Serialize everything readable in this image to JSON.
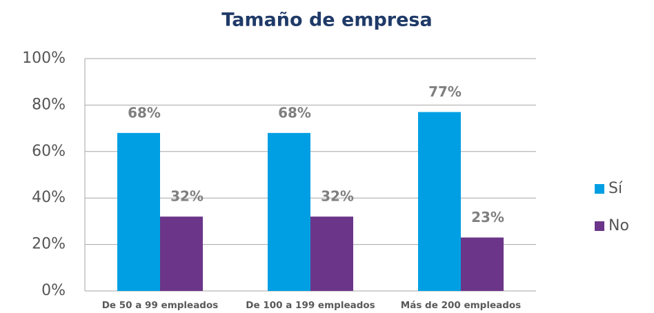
{
  "chart_data": {
    "type": "bar",
    "title": "Tamaño de empresa",
    "categories": [
      "De 50 a 99 empleados",
      "De 100 a 199 empleados",
      "Más de 200 empleados"
    ],
    "series": [
      {
        "name": "Sí",
        "color": "#009fe3",
        "values": [
          68,
          68,
          77
        ],
        "value_labels": [
          "68%",
          "68%",
          "77%"
        ]
      },
      {
        "name": "No",
        "color": "#6b3589",
        "values": [
          32,
          32,
          23
        ],
        "value_labels": [
          "32%",
          "32%",
          "23%"
        ]
      }
    ],
    "ylim": [
      0,
      100
    ],
    "yticks": [
      {
        "value": 0,
        "label": "0%"
      },
      {
        "value": 20,
        "label": "20%"
      },
      {
        "value": 40,
        "label": "40%"
      },
      {
        "value": 60,
        "label": "60%"
      },
      {
        "value": 80,
        "label": "80%"
      },
      {
        "value": 100,
        "label": "100%"
      }
    ],
    "grid": true,
    "legend": "right"
  }
}
